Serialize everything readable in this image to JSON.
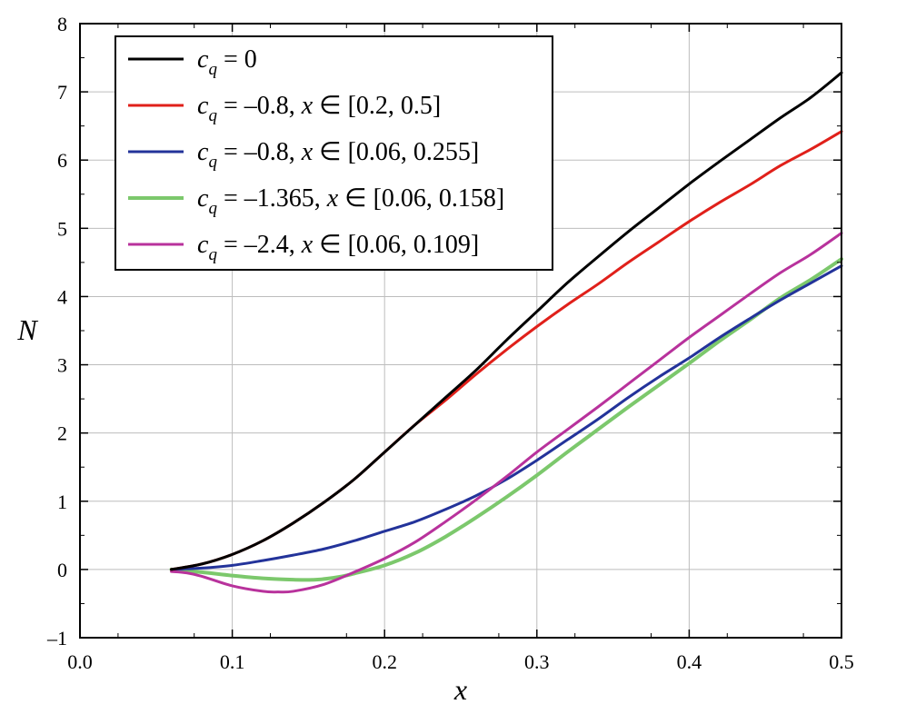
{
  "chart_data": {
    "type": "line",
    "title": "",
    "xlabel": "x",
    "ylabel": "N",
    "xlim": [
      0.0,
      0.5
    ],
    "ylim": [
      -1,
      8
    ],
    "xticks": [
      "0.0",
      "0.1",
      "0.2",
      "0.3",
      "0.4",
      "0.5"
    ],
    "yticks": [
      "–1",
      "0",
      "1",
      "2",
      "3",
      "4",
      "5",
      "6",
      "7",
      "8"
    ],
    "grid": true,
    "legend_position": "top-left",
    "series": [
      {
        "name": "c_q = 0",
        "legend": {
          "sym": "c",
          "sub": "q",
          "rest": " = 0"
        },
        "color": "#000000",
        "x": [
          0.06,
          0.08,
          0.1,
          0.12,
          0.14,
          0.16,
          0.18,
          0.2,
          0.22,
          0.24,
          0.26,
          0.28,
          0.3,
          0.32,
          0.34,
          0.36,
          0.38,
          0.4,
          0.42,
          0.44,
          0.46,
          0.48,
          0.5
        ],
        "y": [
          0.0,
          0.08,
          0.22,
          0.42,
          0.68,
          0.98,
          1.32,
          1.72,
          2.12,
          2.52,
          2.92,
          3.36,
          3.78,
          4.2,
          4.58,
          4.95,
          5.3,
          5.65,
          5.98,
          6.3,
          6.62,
          6.92,
          7.28
        ]
      },
      {
        "name": "c_q = –0.8, x ∈ [0.2, 0.5]",
        "legend": {
          "sym": "c",
          "sub": "q",
          "rest": " = –0.8, ",
          "sym2": "x",
          "rest2": " ∈ [0.2, 0.5]"
        },
        "color": "#e0201a",
        "x": [
          0.06,
          0.08,
          0.1,
          0.12,
          0.14,
          0.16,
          0.18,
          0.2,
          0.22,
          0.24,
          0.26,
          0.28,
          0.3,
          0.32,
          0.34,
          0.36,
          0.38,
          0.4,
          0.42,
          0.44,
          0.46,
          0.48,
          0.5
        ],
        "y": [
          0.0,
          0.08,
          0.22,
          0.42,
          0.68,
          0.98,
          1.32,
          1.72,
          2.12,
          2.48,
          2.86,
          3.22,
          3.56,
          3.88,
          4.18,
          4.5,
          4.8,
          5.1,
          5.38,
          5.64,
          5.92,
          6.16,
          6.42
        ]
      },
      {
        "name": "c_q = –0.8, x ∈ [0.06, 0.255]",
        "legend": {
          "sym": "c",
          "sub": "q",
          "rest": " = –0.8, ",
          "sym2": "x",
          "rest2": " ∈ [0.06, 0.255]"
        },
        "color": "#23339a",
        "x": [
          0.06,
          0.08,
          0.1,
          0.12,
          0.14,
          0.16,
          0.18,
          0.2,
          0.22,
          0.24,
          0.26,
          0.28,
          0.3,
          0.32,
          0.34,
          0.36,
          0.38,
          0.4,
          0.42,
          0.44,
          0.46,
          0.48,
          0.5
        ],
        "y": [
          0.0,
          0.02,
          0.06,
          0.13,
          0.21,
          0.3,
          0.42,
          0.56,
          0.7,
          0.88,
          1.08,
          1.32,
          1.6,
          1.9,
          2.2,
          2.52,
          2.82,
          3.1,
          3.4,
          3.68,
          3.95,
          4.2,
          4.45
        ]
      },
      {
        "name": "c_q = –1.365, x ∈ [0.06, 0.158]",
        "legend": {
          "sym": "c",
          "sub": "q",
          "rest": " = –1.365, ",
          "sym2": "x",
          "rest2": " ∈ [0.06, 0.158]"
        },
        "color": "#7cc86c",
        "x": [
          0.06,
          0.08,
          0.1,
          0.12,
          0.14,
          0.155,
          0.17,
          0.18,
          0.2,
          0.22,
          0.24,
          0.26,
          0.28,
          0.3,
          0.32,
          0.34,
          0.36,
          0.38,
          0.4,
          0.42,
          0.44,
          0.46,
          0.48,
          0.5
        ],
        "y": [
          0.0,
          -0.04,
          -0.09,
          -0.13,
          -0.15,
          -0.15,
          -0.11,
          -0.06,
          0.06,
          0.24,
          0.48,
          0.76,
          1.06,
          1.38,
          1.72,
          2.05,
          2.38,
          2.7,
          3.02,
          3.35,
          3.66,
          3.98,
          4.25,
          4.55
        ]
      },
      {
        "name": "c_q = –2.4, x ∈ [0.06, 0.109]",
        "legend": {
          "sym": "c",
          "sub": "q",
          "rest": " = –2.4, ",
          "sym2": "x",
          "rest2": " ∈ [0.06, 0.109]"
        },
        "color": "#b8329c",
        "x": [
          0.06,
          0.07,
          0.08,
          0.1,
          0.12,
          0.13,
          0.14,
          0.16,
          0.18,
          0.2,
          0.22,
          0.24,
          0.26,
          0.28,
          0.3,
          0.32,
          0.34,
          0.36,
          0.38,
          0.4,
          0.42,
          0.44,
          0.46,
          0.48,
          0.5
        ],
        "y": [
          -0.03,
          -0.05,
          -0.1,
          -0.24,
          -0.32,
          -0.33,
          -0.32,
          -0.22,
          -0.04,
          0.16,
          0.4,
          0.7,
          1.02,
          1.36,
          1.72,
          2.05,
          2.38,
          2.72,
          3.06,
          3.4,
          3.72,
          4.04,
          4.35,
          4.62,
          4.93
        ]
      }
    ]
  }
}
